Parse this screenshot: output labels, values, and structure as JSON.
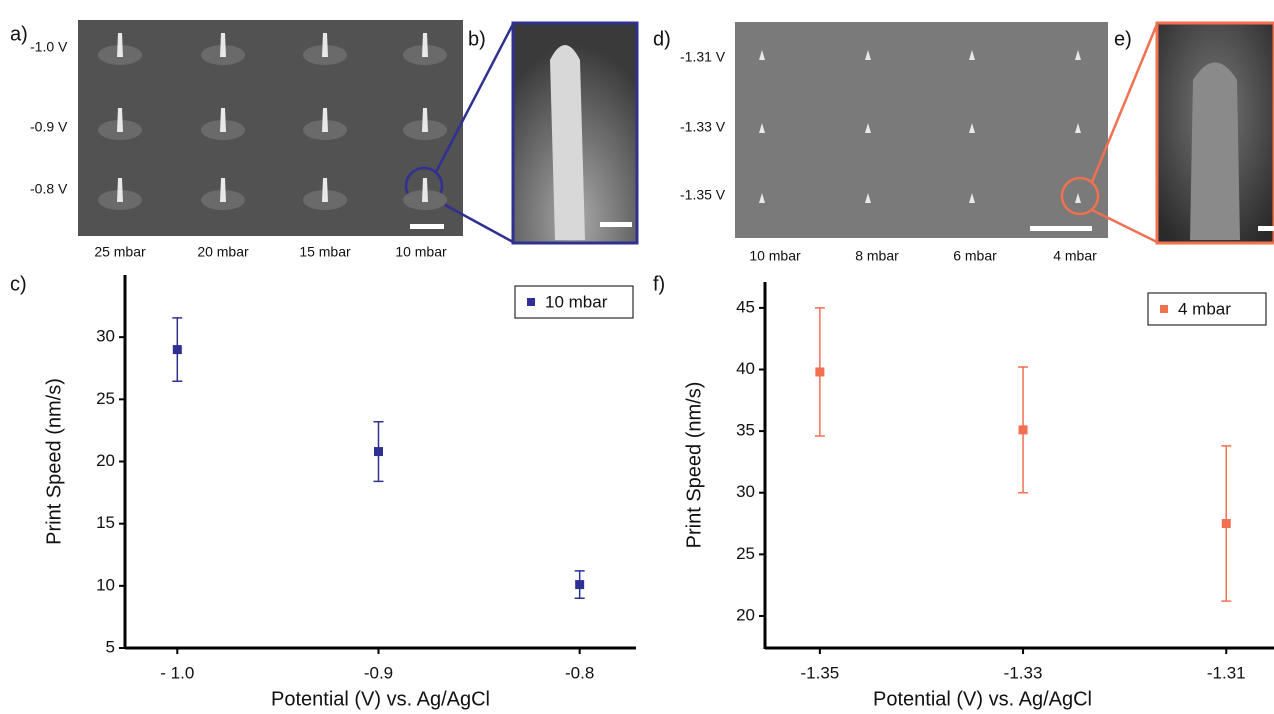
{
  "panels": {
    "a": "a)",
    "b": "b)",
    "c": "c)",
    "d": "d)",
    "e": "e)",
    "f": "f)"
  },
  "images": {
    "a": {
      "row_labels": [
        "-1.0 V",
        "-0.9 V",
        "-0.8 V"
      ],
      "col_labels": [
        "25 mbar",
        "20 mbar",
        "15 mbar",
        "10 mbar"
      ]
    },
    "d": {
      "row_labels": [
        "-1.31 V",
        "-1.33 V",
        "-1.35 V"
      ],
      "col_labels": [
        "10 mbar",
        "8 mbar",
        "6 mbar",
        "4 mbar"
      ]
    }
  },
  "chart_data": [
    {
      "type": "scatter",
      "x": [
        -1.0,
        -0.9,
        -0.8
      ],
      "series": [
        {
          "name": "10 mbar",
          "color": "#2e3192",
          "values": [
            29.0,
            20.8,
            10.1
          ],
          "errors": [
            2.55,
            2.4,
            1.1
          ]
        }
      ],
      "xlim": [
        -1.026,
        -0.772
      ],
      "ylim": [
        5,
        35
      ],
      "xticks": [
        {
          "value": -1.0,
          "label": "- 1.0"
        },
        -0.9,
        -0.8
      ],
      "yticks": [
        5,
        10,
        15,
        20,
        25,
        30
      ],
      "xlabel": "Potential (V) vs. Ag/AgCl",
      "ylabel": "Print Speed (nm/s)",
      "legend": "upper right"
    },
    {
      "type": "scatter",
      "x": [
        -1.35,
        -1.33,
        -1.31
      ],
      "series": [
        {
          "name": "4 mbar",
          "color": "#f07050",
          "values": [
            39.8,
            35.1,
            27.5
          ],
          "errors": [
            5.2,
            5.1,
            6.3
          ]
        }
      ],
      "xlim": [
        -1.3554,
        -1.3053
      ],
      "ylim": [
        17.4,
        47.1
      ],
      "xticks": [
        -1.35,
        -1.33,
        -1.31
      ],
      "yticks": [
        20,
        25,
        30,
        35,
        40,
        45
      ],
      "xlabel": "Potential (V) vs. Ag/AgCl",
      "ylabel": "Print Speed (nm/s)",
      "legend": "upper right"
    }
  ]
}
